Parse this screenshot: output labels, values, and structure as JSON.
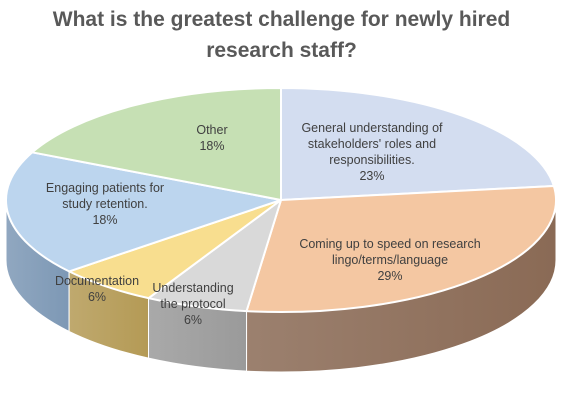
{
  "chart_data": {
    "type": "pie",
    "title_lines": [
      "What is the greatest challenge for newly hired",
      "research staff?"
    ],
    "slices": [
      {
        "category_lines": [
          "General understanding of",
          "stakeholders' roles and",
          "responsibilities."
        ],
        "value": 23,
        "value_label": "23%",
        "color": "#d3ddf0",
        "side_color": "#9aa5bc"
      },
      {
        "category_lines": [
          "Coming up to speed on research",
          "lingo/terms/language"
        ],
        "value": 29,
        "value_label": "29%",
        "color": "#f4c7a2",
        "side_color": "#8a6a55"
      },
      {
        "category_lines": [
          "Understanding",
          "the protocol"
        ],
        "value": 6,
        "value_label": "6%",
        "color": "#d9d9d9",
        "side_color": "#9a9a9a"
      },
      {
        "category_lines": [
          "Documentation"
        ],
        "value": 6,
        "value_label": "6%",
        "color": "#f8de8f",
        "side_color": "#b49a55"
      },
      {
        "category_lines": [
          "Engaging patients for",
          "study retention."
        ],
        "value": 18,
        "value_label": "18%",
        "color": "#bcd5ee",
        "side_color": "#7d98b5"
      },
      {
        "category_lines": [
          "Other"
        ],
        "value": 18,
        "value_label": "18%",
        "color": "#c6e0b4",
        "side_color": "#86a077"
      }
    ],
    "legend": "none",
    "style": "3d"
  }
}
